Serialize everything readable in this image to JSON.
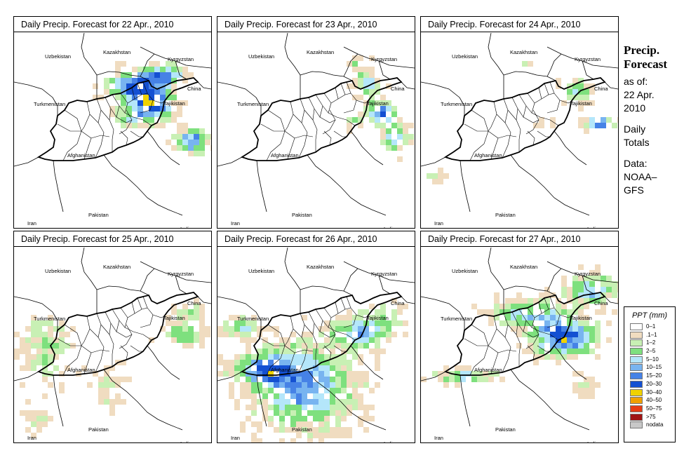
{
  "panels": [
    {
      "title": "Daily Precip. Forecast for  22 Apr., 2010",
      "seed": 1
    },
    {
      "title": "Daily Precip. Forecast for  23 Apr., 2010",
      "seed": 2
    },
    {
      "title": "Daily Precip. Forecast for  24 Apr., 2010",
      "seed": 3
    },
    {
      "title": "Daily Precip. Forecast for  25 Apr., 2010",
      "seed": 4
    },
    {
      "title": "Daily Precip. Forecast for  26 Apr., 2010",
      "seed": 5
    },
    {
      "title": "Daily Precip. Forecast for  27 Apr., 2010",
      "seed": 6
    }
  ],
  "labels": {
    "uzbekistan": "Uzbekistan",
    "kazakhstan": "Kazakhstan",
    "kyrgyzstan": "Kyrgyzstan",
    "china": "China",
    "turkmenistan": "Turkmenistan",
    "tajikistan": "Tajikistan",
    "afghanistan": "Afghanistan",
    "pakistan": "Pakistan",
    "iran": "Iran",
    "india": "India"
  },
  "side": {
    "title_line1": "Precip.",
    "title_line2": "Forecast",
    "asof_line1": "as of:",
    "asof_line2": "22 Apr.",
    "asof_line3": "2010",
    "totals_line1": "Daily",
    "totals_line2": "Totals",
    "data_line1": "Data:",
    "data_line2": "NOAA–",
    "data_line3": "GFS"
  },
  "legend": {
    "title": "PPT (mm)",
    "items": [
      {
        "label": "0–1",
        "color": "#ffffff"
      },
      {
        "label": ".1–1",
        "color": "#f0dcc0"
      },
      {
        "label": "1–2",
        "color": "#c8f0b4"
      },
      {
        "label": "2–5",
        "color": "#7ee07e"
      },
      {
        "label": "5–10",
        "color": "#b4e6fa"
      },
      {
        "label": "10–15",
        "color": "#78b4f0"
      },
      {
        "label": "15–20",
        "color": "#4682e6"
      },
      {
        "label": "20–30",
        "color": "#1450d2"
      },
      {
        "label": "30–40",
        "color": "#f0d200"
      },
      {
        "label": "40–50",
        "color": "#f0a000"
      },
      {
        "label": "50–75",
        "color": "#e63c14"
      },
      {
        "label": ">75",
        "color": "#a01414"
      },
      {
        "label": "nodata",
        "color": "#c8c8c8"
      }
    ]
  }
}
